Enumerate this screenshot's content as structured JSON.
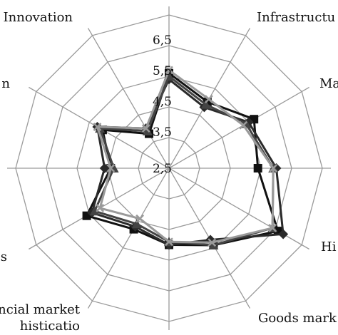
{
  "chart_data": {
    "type": "radar",
    "title": "",
    "axes": [
      "Innovation",
      "Infrastructu",
      "Ma",
      "",
      "Hi",
      "Goods mark",
      "",
      "ncial market\nhisticatio",
      "s",
      "",
      "n",
      ""
    ],
    "ticks": [
      "2,5",
      "3,5",
      "4,5",
      "5,5",
      "6,5"
    ],
    "range": [
      1.5,
      6.5
    ],
    "grid": true,
    "legend": "none",
    "series": [
      {
        "color": "#111111",
        "marker": "square",
        "values": [
          4.6,
          4.0,
          4.7,
          4.4,
          5.6,
          4.4,
          4.0,
          3.8,
          4.6,
          3.4,
          4.0,
          2.8
        ]
      },
      {
        "color": "#2a2a2a",
        "marker": "diamond",
        "values": [
          4.4,
          3.8,
          4.5,
          5.0,
          5.8,
          4.2,
          4.0,
          3.7,
          4.4,
          3.6,
          4.2,
          3.0
        ]
      },
      {
        "color": "#444444",
        "marker": "triangle",
        "values": [
          4.5,
          3.9,
          4.4,
          4.9,
          5.4,
          4.4,
          3.9,
          3.6,
          4.3,
          3.3,
          4.1,
          2.9
        ]
      },
      {
        "color": "#9a9a9a",
        "marker": "x",
        "values": [
          4.7,
          4.1,
          4.3,
          4.9,
          5.4,
          4.3,
          3.9,
          3.4,
          4.1,
          3.4,
          4.2,
          3.0
        ]
      }
    ]
  }
}
